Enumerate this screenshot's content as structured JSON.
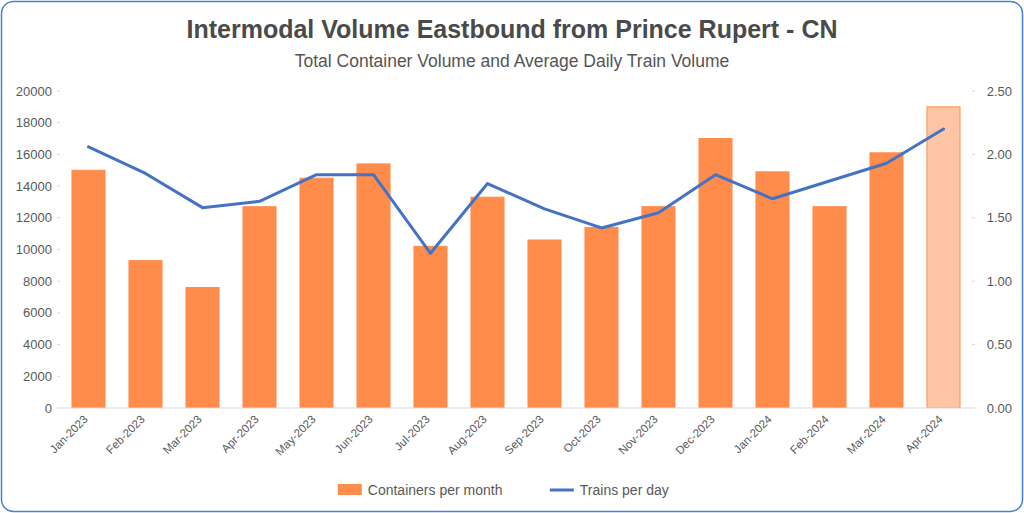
{
  "chart_data": {
    "type": "bar",
    "title": "Intermodal Volume Eastbound from Prince Rupert - CN",
    "subtitle": "Total Container Volume and Average Daily Train Volume",
    "categories": [
      "Jan-2023",
      "Feb-2023",
      "Mar-2023",
      "Apr-2023",
      "May-2023",
      "Jun-2023",
      "Jul-2023",
      "Aug-2023",
      "Sep-2023",
      "Oct-2023",
      "Nov-2023",
      "Dec-2023",
      "Jan-2024",
      "Feb-2024",
      "Mar-2024",
      "Apr-2024"
    ],
    "series": [
      {
        "name": "Containers per month",
        "type": "bar",
        "color": "#ff8c4b",
        "colors": [
          "#ff8c4b",
          "#ff8c4b",
          "#ff8c4b",
          "#ff8c4b",
          "#ff8c4b",
          "#ff8c4b",
          "#ff8c4b",
          "#ff8c4b",
          "#ff8c4b",
          "#ff8c4b",
          "#ff8c4b",
          "#ff8c4b",
          "#ff8c4b",
          "#ff8c4b",
          "#ff8c4b",
          "#ffc4a3"
        ],
        "values": [
          15000,
          9300,
          7600,
          12700,
          14500,
          15400,
          10200,
          13300,
          10600,
          11400,
          12700,
          17000,
          14900,
          12700,
          16100,
          19000
        ]
      },
      {
        "name": "Trains per day",
        "type": "line",
        "color": "#4472c4",
        "axis": "y2",
        "values": [
          2.06,
          1.85,
          1.58,
          1.63,
          1.84,
          1.84,
          1.22,
          1.77,
          1.57,
          1.42,
          1.54,
          1.84,
          1.65,
          1.79,
          1.93,
          2.2
        ]
      }
    ],
    "ylim": [
      0,
      20000
    ],
    "yticks": [
      0,
      2000,
      4000,
      6000,
      8000,
      10000,
      12000,
      14000,
      16000,
      18000,
      20000
    ],
    "y2lim": [
      0,
      2.5
    ],
    "y2ticks": [
      {
        "value": 0,
        "label": "0.00"
      },
      {
        "value": 0.5,
        "label": "0.50"
      },
      {
        "value": 1,
        "label": "1.00"
      },
      {
        "value": 1.5,
        "label": "1.50"
      },
      {
        "value": 2,
        "label": "2.00"
      },
      {
        "value": 2.5,
        "label": "2.50"
      }
    ],
    "grid": false,
    "legend": "bottom"
  }
}
